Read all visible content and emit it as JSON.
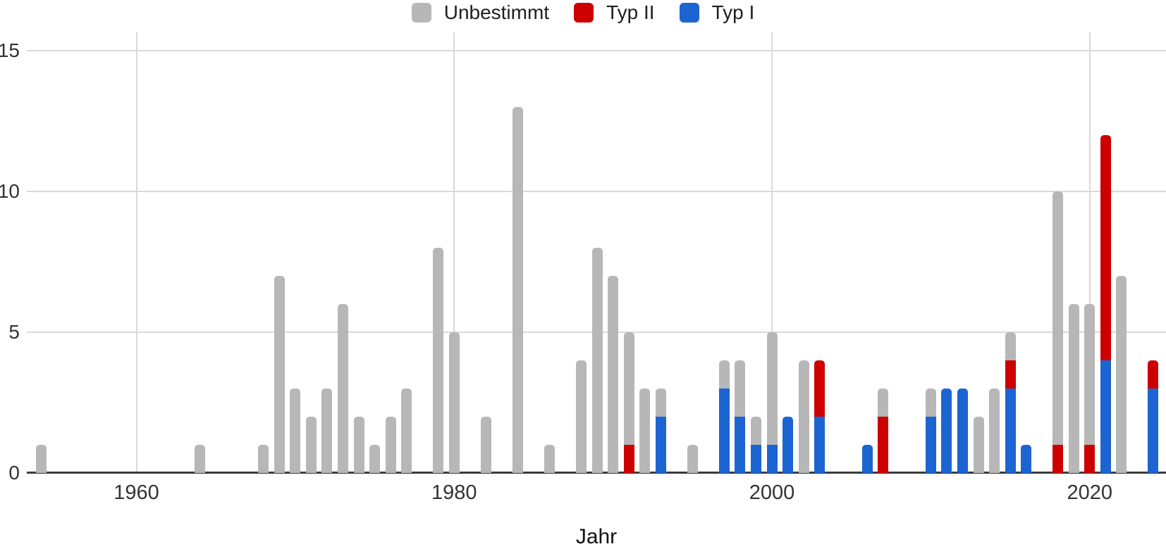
{
  "axis_title_x": "Jahr",
  "chart_data": {
    "type": "bar",
    "stacked": true,
    "xlabel": "Jahr",
    "ylabel": "",
    "grid": true,
    "legend_position": "top-center",
    "ylim": [
      0,
      15.65
    ],
    "yticks": [
      0,
      5,
      10,
      15
    ],
    "xticks": [
      1960,
      1980,
      2000,
      2020
    ],
    "x_range": [
      1953.1,
      2024.8
    ],
    "legend": [
      {
        "key": "unbestimmt",
        "label": "Unbestimmt",
        "color": "#b7b7b7"
      },
      {
        "key": "typ2",
        "label": "Typ II",
        "color": "#cc0000"
      },
      {
        "key": "typ1",
        "label": "Typ I",
        "color": "#1c64d2"
      }
    ],
    "stack_order": [
      "typ1",
      "typ2",
      "unbestimmt"
    ],
    "bars": [
      {
        "year": 1954,
        "typ1": 0,
        "typ2": 0,
        "unbestimmt": 1
      },
      {
        "year": 1964,
        "typ1": 0,
        "typ2": 0,
        "unbestimmt": 1
      },
      {
        "year": 1968,
        "typ1": 0,
        "typ2": 0,
        "unbestimmt": 1
      },
      {
        "year": 1969,
        "typ1": 0,
        "typ2": 0,
        "unbestimmt": 7
      },
      {
        "year": 1970,
        "typ1": 0,
        "typ2": 0,
        "unbestimmt": 3
      },
      {
        "year": 1971,
        "typ1": 0,
        "typ2": 0,
        "unbestimmt": 2
      },
      {
        "year": 1972,
        "typ1": 0,
        "typ2": 0,
        "unbestimmt": 3
      },
      {
        "year": 1973,
        "typ1": 0,
        "typ2": 0,
        "unbestimmt": 6
      },
      {
        "year": 1974,
        "typ1": 0,
        "typ2": 0,
        "unbestimmt": 2
      },
      {
        "year": 1975,
        "typ1": 0,
        "typ2": 0,
        "unbestimmt": 1
      },
      {
        "year": 1976,
        "typ1": 0,
        "typ2": 0,
        "unbestimmt": 2
      },
      {
        "year": 1977,
        "typ1": 0,
        "typ2": 0,
        "unbestimmt": 3
      },
      {
        "year": 1979,
        "typ1": 0,
        "typ2": 0,
        "unbestimmt": 8
      },
      {
        "year": 1980,
        "typ1": 0,
        "typ2": 0,
        "unbestimmt": 5
      },
      {
        "year": 1982,
        "typ1": 0,
        "typ2": 0,
        "unbestimmt": 2
      },
      {
        "year": 1984,
        "typ1": 0,
        "typ2": 0,
        "unbestimmt": 13
      },
      {
        "year": 1986,
        "typ1": 0,
        "typ2": 0,
        "unbestimmt": 1
      },
      {
        "year": 1988,
        "typ1": 0,
        "typ2": 0,
        "unbestimmt": 4
      },
      {
        "year": 1989,
        "typ1": 0,
        "typ2": 0,
        "unbestimmt": 8
      },
      {
        "year": 1990,
        "typ1": 0,
        "typ2": 0,
        "unbestimmt": 7
      },
      {
        "year": 1991,
        "typ1": 0,
        "typ2": 1,
        "unbestimmt": 4
      },
      {
        "year": 1992,
        "typ1": 0,
        "typ2": 0,
        "unbestimmt": 3
      },
      {
        "year": 1993,
        "typ1": 2,
        "typ2": 0,
        "unbestimmt": 1
      },
      {
        "year": 1995,
        "typ1": 0,
        "typ2": 0,
        "unbestimmt": 1
      },
      {
        "year": 1997,
        "typ1": 3,
        "typ2": 0,
        "unbestimmt": 1
      },
      {
        "year": 1998,
        "typ1": 2,
        "typ2": 0,
        "unbestimmt": 2
      },
      {
        "year": 1999,
        "typ1": 1,
        "typ2": 0,
        "unbestimmt": 1
      },
      {
        "year": 2000,
        "typ1": 1,
        "typ2": 0,
        "unbestimmt": 4
      },
      {
        "year": 2001,
        "typ1": 2,
        "typ2": 0,
        "unbestimmt": 0
      },
      {
        "year": 2002,
        "typ1": 0,
        "typ2": 0,
        "unbestimmt": 4
      },
      {
        "year": 2003,
        "typ1": 2,
        "typ2": 2,
        "unbestimmt": 0
      },
      {
        "year": 2006,
        "typ1": 1,
        "typ2": 0,
        "unbestimmt": 0
      },
      {
        "year": 2007,
        "typ1": 0,
        "typ2": 2,
        "unbestimmt": 1
      },
      {
        "year": 2010,
        "typ1": 2,
        "typ2": 0,
        "unbestimmt": 1
      },
      {
        "year": 2011,
        "typ1": 3,
        "typ2": 0,
        "unbestimmt": 0
      },
      {
        "year": 2012,
        "typ1": 3,
        "typ2": 0,
        "unbestimmt": 0
      },
      {
        "year": 2013,
        "typ1": 0,
        "typ2": 0,
        "unbestimmt": 2
      },
      {
        "year": 2014,
        "typ1": 0,
        "typ2": 0,
        "unbestimmt": 3
      },
      {
        "year": 2015,
        "typ1": 3,
        "typ2": 1,
        "unbestimmt": 1
      },
      {
        "year": 2016,
        "typ1": 1,
        "typ2": 0,
        "unbestimmt": 0
      },
      {
        "year": 2018,
        "typ1": 0,
        "typ2": 1,
        "unbestimmt": 9
      },
      {
        "year": 2019,
        "typ1": 0,
        "typ2": 0,
        "unbestimmt": 6
      },
      {
        "year": 2020,
        "typ1": 0,
        "typ2": 1,
        "unbestimmt": 5
      },
      {
        "year": 2021,
        "typ1": 4,
        "typ2": 8,
        "unbestimmt": 0
      },
      {
        "year": 2022,
        "typ1": 0,
        "typ2": 0,
        "unbestimmt": 7
      },
      {
        "year": 2024,
        "typ1": 3,
        "typ2": 1,
        "unbestimmt": 0
      }
    ]
  }
}
